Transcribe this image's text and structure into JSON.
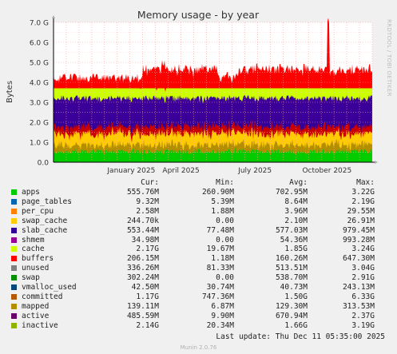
{
  "chart_data": {
    "type": "area",
    "title": "Memory usage - by year",
    "ylabel": "Bytes",
    "ylim": [
      0,
      7.0
    ],
    "y_unit": "G",
    "y_ticks": [
      "0.0",
      "1.0 G",
      "2.0 G",
      "3.0 G",
      "4.0 G",
      "5.0 G",
      "6.0 G",
      "7.0 G"
    ],
    "x_ticks": [
      "January 2025",
      "April 2025",
      "July 2025",
      "October 2025"
    ],
    "grid": true,
    "series_colors": {
      "apps": "#00cc00",
      "page_tables": "#0066b3",
      "per_cpu": "#ff8000",
      "swap_cache": "#ffcc00",
      "slab_cache": "#330099",
      "shmem": "#990099",
      "cache": "#ccff00",
      "buffers": "#ff0000",
      "unused": "#808080",
      "swap": "#008f00",
      "vmalloc_used": "#00487d",
      "committed": "#b35a00",
      "mapped": "#b38f00",
      "active": "#6b006b",
      "inactive": "#8fb300"
    }
  },
  "legend": {
    "headers": {
      "cur": "Cur:",
      "min": "Min:",
      "avg": "Avg:",
      "max": "Max:"
    },
    "rows": [
      {
        "name": "apps",
        "color": "#00cc00",
        "cur": "555.76M",
        "min": "260.90M",
        "avg": "702.95M",
        "max": "3.22G"
      },
      {
        "name": "page_tables",
        "color": "#0066b3",
        "cur": "9.32M",
        "min": "5.39M",
        "avg": "8.64M",
        "max": "2.19G"
      },
      {
        "name": "per_cpu",
        "color": "#ff8000",
        "cur": "2.58M",
        "min": "1.88M",
        "avg": "3.96M",
        "max": "29.55M"
      },
      {
        "name": "swap_cache",
        "color": "#ffcc00",
        "cur": "244.70k",
        "min": "0.00",
        "avg": "2.10M",
        "max": "26.91M"
      },
      {
        "name": "slab_cache",
        "color": "#330099",
        "cur": "553.44M",
        "min": "77.48M",
        "avg": "577.03M",
        "max": "979.45M"
      },
      {
        "name": "shmem",
        "color": "#990099",
        "cur": "34.98M",
        "min": "0.00",
        "avg": "54.36M",
        "max": "993.28M"
      },
      {
        "name": "cache",
        "color": "#ccff00",
        "cur": "2.17G",
        "min": "19.67M",
        "avg": "1.85G",
        "max": "3.24G"
      },
      {
        "name": "buffers",
        "color": "#ff0000",
        "cur": "206.15M",
        "min": "1.18M",
        "avg": "160.26M",
        "max": "647.30M"
      },
      {
        "name": "unused",
        "color": "#808080",
        "cur": "336.26M",
        "min": "81.33M",
        "avg": "513.51M",
        "max": "3.04G"
      },
      {
        "name": "swap",
        "color": "#008f00",
        "cur": "302.24M",
        "min": "0.00",
        "avg": "538.70M",
        "max": "2.91G"
      },
      {
        "name": "vmalloc_used",
        "color": "#00487d",
        "cur": "42.50M",
        "min": "30.74M",
        "avg": "40.73M",
        "max": "243.13M"
      },
      {
        "name": "committed",
        "color": "#b35a00",
        "cur": "1.17G",
        "min": "747.36M",
        "avg": "1.50G",
        "max": "6.33G"
      },
      {
        "name": "mapped",
        "color": "#b38f00",
        "cur": "139.11M",
        "min": "6.87M",
        "avg": "129.30M",
        "max": "313.53M"
      },
      {
        "name": "active",
        "color": "#6b006b",
        "cur": "485.59M",
        "min": "9.90M",
        "avg": "670.94M",
        "max": "2.37G"
      },
      {
        "name": "inactive",
        "color": "#8fb300",
        "cur": "2.14G",
        "min": "20.34M",
        "avg": "1.66G",
        "max": "3.19G"
      }
    ]
  },
  "footer": {
    "last_update": "Last update: Thu Dec 11 05:35:00 2025",
    "version": "Munin 2.0.76",
    "credit": "RRDTOOL / TOBI OETIKER"
  }
}
